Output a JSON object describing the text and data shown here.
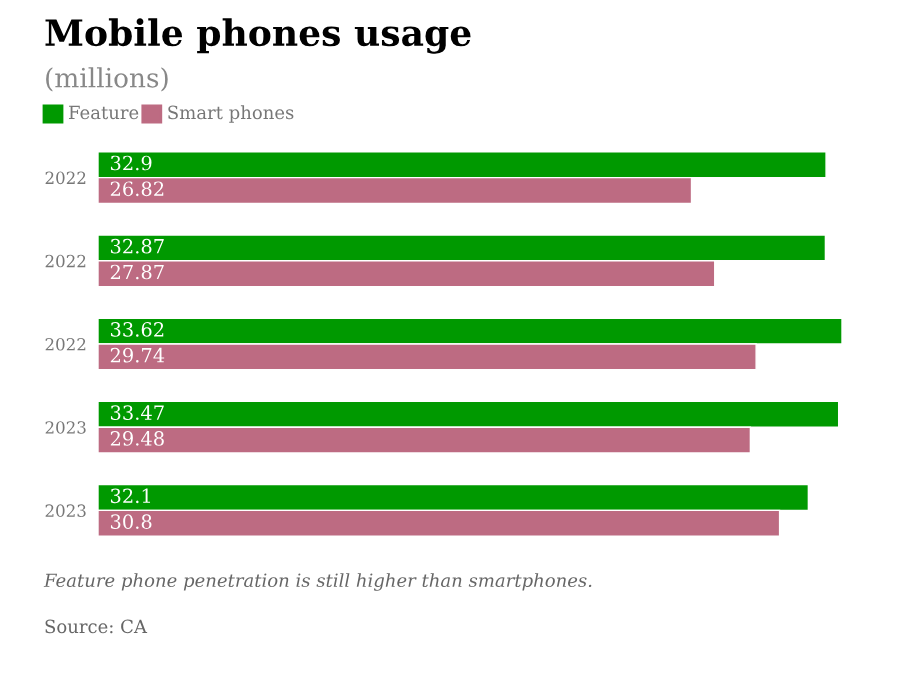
{
  "chart_data": {
    "type": "bar",
    "orientation": "horizontal",
    "title": "Mobile phones usage",
    "subtitle": "(millions)",
    "categories": [
      "2022",
      "2022",
      "2022",
      "2023",
      "2023"
    ],
    "series": [
      {
        "name": "Feature",
        "color": "#009900",
        "values": [
          32.9,
          32.87,
          33.62,
          33.47,
          32.1
        ]
      },
      {
        "name": "Smart phones",
        "color": "#bd6b82",
        "values": [
          26.82,
          27.87,
          29.74,
          29.48,
          30.8
        ]
      }
    ],
    "data_labels": true,
    "legend": "top left",
    "grid": false,
    "annotations": [
      "Feature phone penetration is still higher than smartphones.",
      "Source: CA"
    ]
  }
}
